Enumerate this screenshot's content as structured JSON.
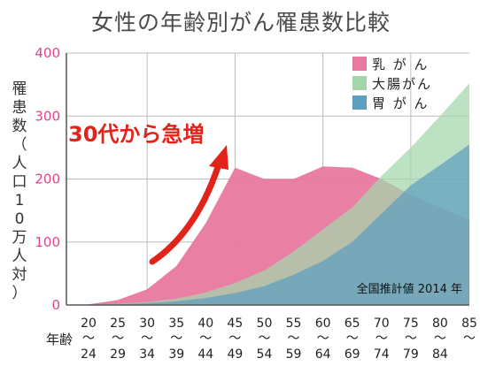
{
  "chart_data": {
    "type": "area",
    "title": "女性の年齢別がん罹患数比較",
    "ylabel": "罹患数（人口10万人対）",
    "xlabel": "年齢",
    "ylim": [
      0,
      400
    ],
    "yticks": [
      "400",
      "300",
      "200",
      "100",
      "0"
    ],
    "categories": [
      [
        "20",
        "〜",
        "24"
      ],
      [
        "25",
        "〜",
        "29"
      ],
      [
        "30",
        "〜",
        "34"
      ],
      [
        "35",
        "〜",
        "39"
      ],
      [
        "40",
        "〜",
        "44"
      ],
      [
        "45",
        "〜",
        "49"
      ],
      [
        "50",
        "〜",
        "54"
      ],
      [
        "55",
        "〜",
        "59"
      ],
      [
        "60",
        "〜",
        "64"
      ],
      [
        "65",
        "〜",
        "69"
      ],
      [
        "70",
        "〜",
        "74"
      ],
      [
        "75",
        "〜",
        "79"
      ],
      [
        "80",
        "〜",
        "84"
      ],
      [
        "85",
        "〜",
        ""
      ]
    ],
    "series": [
      {
        "name": "乳 が ん",
        "color": "#e8799f",
        "values": [
          1,
          8,
          25,
          62,
          130,
          218,
          200,
          200,
          220,
          218,
          200,
          175,
          155,
          135
        ]
      },
      {
        "name": "大腸がん",
        "color": "#a4d6ac",
        "values": [
          0,
          2,
          5,
          10,
          20,
          35,
          55,
          85,
          120,
          155,
          205,
          250,
          300,
          352
        ]
      },
      {
        "name": "胃 が ん",
        "color": "#5d9fbf",
        "values": [
          0,
          1,
          3,
          6,
          11,
          19,
          30,
          48,
          70,
          100,
          145,
          190,
          222,
          255
        ]
      }
    ],
    "annotation": "30代から急増",
    "note": "全国推計値 2014 年",
    "grid": true,
    "legend": "top-right"
  },
  "colors": {
    "axis_tick": "#e0468c",
    "annotation": "#e2231a",
    "grid": "#bdbdbd"
  }
}
